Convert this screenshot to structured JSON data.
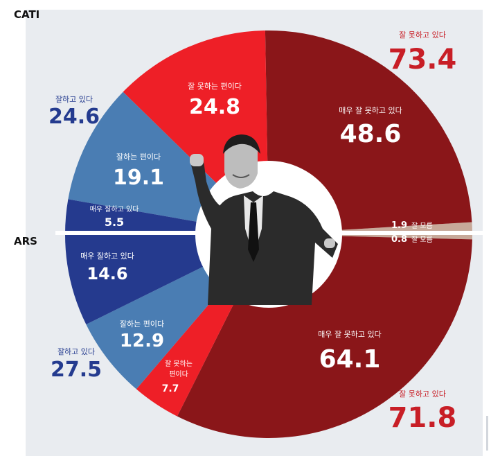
{
  "colors": {
    "very_bad": "#8a1619",
    "somewhat_bad": "#ee1f27",
    "somewhat_good": "#4a7db3",
    "very_good": "#253a8e",
    "unknown": "#c7a99a",
    "background": "#e9ecf0"
  },
  "chart_data": {
    "type": "pie",
    "donut": true,
    "groups": [
      {
        "name": "CATI",
        "half": "top",
        "segments": [
          {
            "label": "매우 잘 못하고 있다",
            "value": 48.6
          },
          {
            "label": "잘 못하는 편이다",
            "value": 24.8
          },
          {
            "label": "잘하는 편이다",
            "value": 19.1
          },
          {
            "label": "매우 잘하고 있다",
            "value": 5.5
          },
          {
            "label": "잘 모름",
            "value": 1.9
          }
        ],
        "totals": [
          {
            "label": "잘 못하고 있다",
            "value": 73.4
          },
          {
            "label": "잘하고 있다",
            "value": 24.6
          }
        ]
      },
      {
        "name": "ARS",
        "half": "bottom",
        "segments": [
          {
            "label": "매우 잘 못하고 있다",
            "value": 64.1
          },
          {
            "label": "잘 못하는 편이다",
            "value": 7.7
          },
          {
            "label": "잘하는 편이다",
            "value": 12.9
          },
          {
            "label": "매우 잘하고 있다",
            "value": 14.6
          },
          {
            "label": "잘 모름",
            "value": 0.8
          }
        ],
        "totals": [
          {
            "label": "잘 못하고 있다",
            "value": 71.8
          },
          {
            "label": "잘하고 있다",
            "value": 27.5
          }
        ]
      }
    ]
  }
}
